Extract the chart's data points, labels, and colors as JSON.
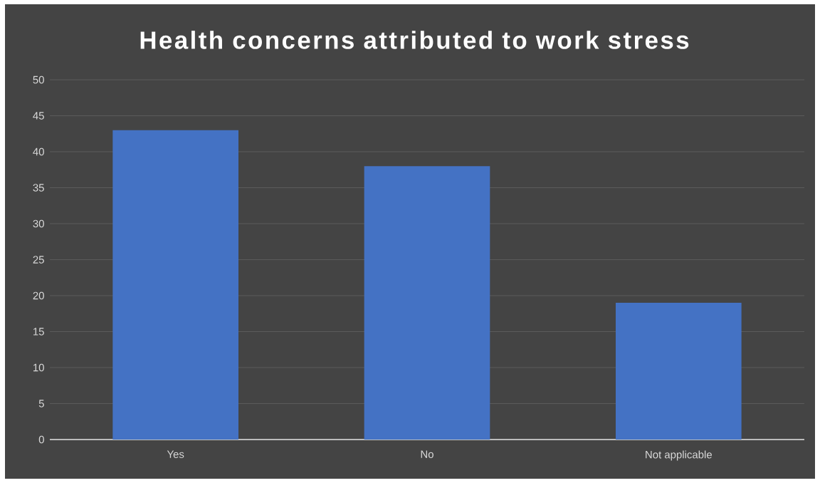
{
  "chart_data": {
    "type": "bar",
    "title": "Health concerns attributed to work stress",
    "categories": [
      "Yes",
      "No",
      "Not applicable"
    ],
    "values": [
      43,
      38,
      19
    ],
    "color": "#4472c4",
    "ylim": [
      0,
      50
    ],
    "yticks": [
      0,
      5,
      10,
      15,
      20,
      25,
      30,
      35,
      40,
      45,
      50
    ],
    "grid": "y"
  }
}
